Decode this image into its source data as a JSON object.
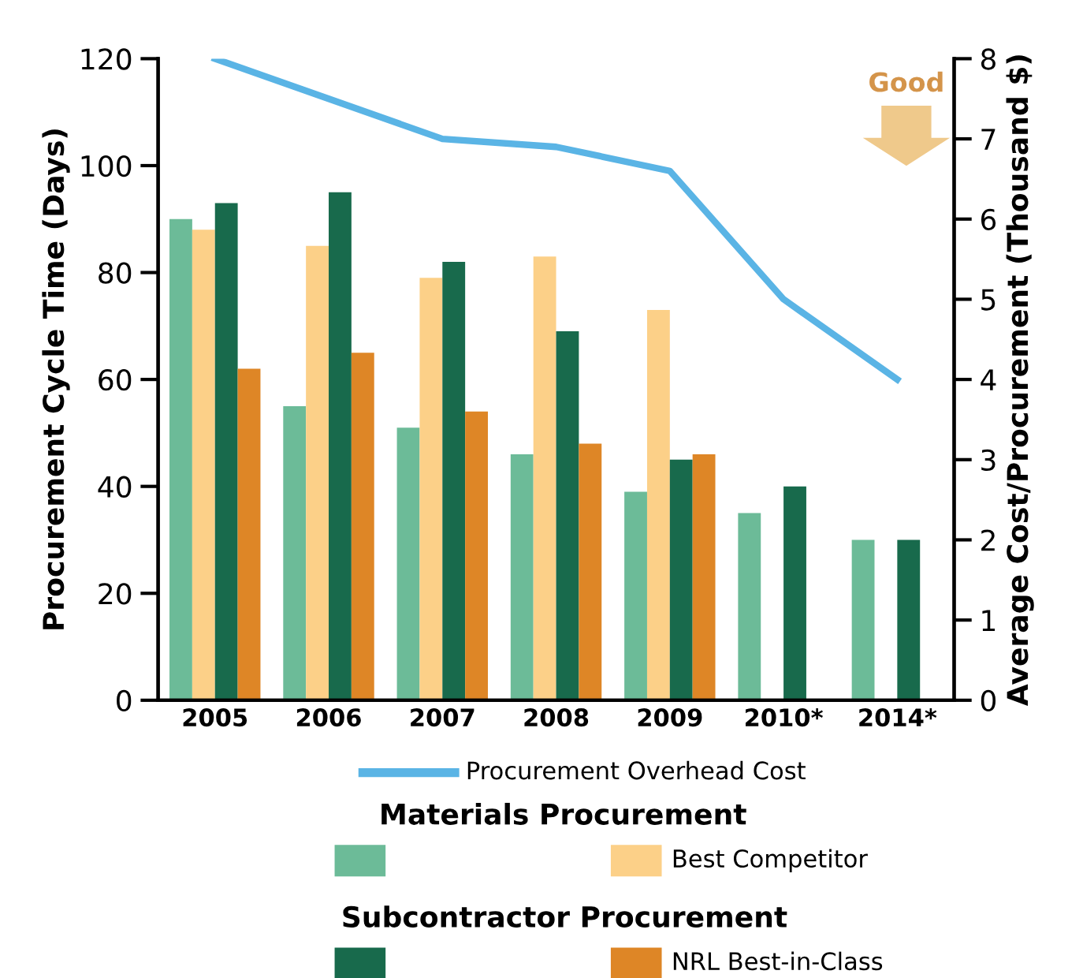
{
  "chart_data": {
    "type": "bar",
    "categories": [
      "2005",
      "2006",
      "2007",
      "2008",
      "2009",
      "2010*",
      "2014*"
    ],
    "ylabel": "Procurement Cycle Time (Days)",
    "y2label": "Average Cost/Procurement (Thousand $)",
    "ylim": [
      0,
      120
    ],
    "yticks": [
      0,
      20,
      40,
      60,
      80,
      100,
      120
    ],
    "y2lim": [
      0,
      8
    ],
    "y2ticks": [
      0,
      1,
      2,
      3,
      4,
      5,
      6,
      7,
      8
    ],
    "series": [
      {
        "type": "line",
        "axis": "y2",
        "name": "Procurement Overhead Cost",
        "color": "#5ab4e5",
        "values": [
          8,
          7.5,
          7.0,
          6.9,
          6.6,
          5.0,
          4.0
        ]
      },
      {
        "color": "#6cbb98",
        "values": [
          90,
          55,
          51,
          46,
          39,
          35,
          30
        ]
      },
      {
        "name": "Best Competitor",
        "color": "#fcd088",
        "values": [
          88,
          85,
          79,
          83,
          73,
          null,
          null
        ]
      },
      {
        "color": "#186a4c",
        "values": [
          93,
          95,
          82,
          69,
          45,
          40,
          30
        ]
      },
      {
        "name": "NRL Best-in-Class",
        "color": "#de8626",
        "values": [
          62,
          65,
          54,
          48,
          46,
          null,
          null
        ]
      }
    ],
    "annotations": [
      "Good",
      "Materials Procurement",
      "Subcontractor Procurement"
    ],
    "legend": "bottom"
  }
}
